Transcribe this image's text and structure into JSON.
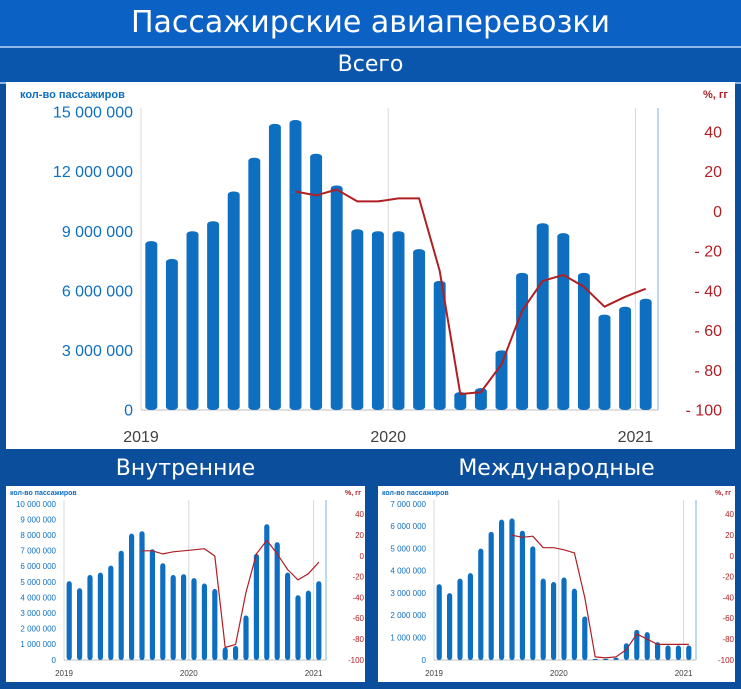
{
  "header": {
    "title": "Пассажирские авиаперевозки",
    "subtitle": "Всего"
  },
  "colors": {
    "bars": "#0e6fc1",
    "line": "#b01f24",
    "left_axis_text": "#0e6fc1",
    "right_axis_text": "#b01f24",
    "header_bg": "#0c61c4"
  },
  "chart_data": [
    {
      "id": "total",
      "type": "bar",
      "title": "Всего",
      "ylabel": "кол-во пассажиров",
      "y2label": "%, гг",
      "ylim": [
        0,
        15000000
      ],
      "y_ticks": [
        0,
        3000000,
        6000000,
        9000000,
        12000000,
        15000000
      ],
      "y_tick_labels": [
        "0",
        "3 000 000",
        "6 000 000",
        "9 000 000",
        "12 000 000",
        "15 000 000"
      ],
      "y2lim": [
        -100,
        50
      ],
      "y2_ticks": [
        -100,
        -80,
        -60,
        -40,
        -20,
        0,
        20,
        40
      ],
      "y2_tick_labels": [
        "- 100",
        "- 80",
        "- 60",
        "- 40",
        "- 20",
        "0",
        "20",
        "40"
      ],
      "x_labels": [
        {
          "index": 0,
          "text": "2019"
        },
        {
          "index": 12,
          "text": "2020"
        },
        {
          "index": 24,
          "text": "2021"
        }
      ],
      "values": [
        8500000,
        7600000,
        9000000,
        9500000,
        11000000,
        12700000,
        14400000,
        14600000,
        12900000,
        11300000,
        9100000,
        9000000,
        9000000,
        8100000,
        6500000,
        900000,
        1100000,
        3000000,
        6900000,
        9400000,
        8900000,
        6900000,
        4800000,
        5200000,
        5600000
      ],
      "series2": {
        "start_index": 7,
        "values": [
          10,
          8,
          11,
          5,
          5,
          6.5,
          6.5,
          -30,
          -92,
          -91,
          -77,
          -50,
          -35,
          -32,
          -38,
          -48,
          -43,
          -39
        ]
      }
    },
    {
      "id": "domestic",
      "type": "bar",
      "title": "Внутренние",
      "ylabel": "кол-во пассажиров",
      "y2label": "%, гг",
      "ylim": [
        0,
        10000000
      ],
      "y_ticks": [
        0,
        1000000,
        2000000,
        3000000,
        4000000,
        5000000,
        6000000,
        7000000,
        8000000,
        9000000,
        10000000
      ],
      "y_tick_labels": [
        "0",
        "1 000 000",
        "2 000 000",
        "3 000 000",
        "4 000 000",
        "5 000 000",
        "6 000 000",
        "7 000 000",
        "8 000 000",
        "9 000 000",
        "10 000 000"
      ],
      "y2lim": [
        -100,
        50
      ],
      "y2_ticks": [
        -100,
        -80,
        -60,
        -40,
        -20,
        0,
        20,
        40
      ],
      "y2_tick_labels": [
        "-100",
        "-80",
        "-60",
        "-40",
        "-20",
        "0",
        "20",
        "40"
      ],
      "x_labels": [
        {
          "index": 0,
          "text": "2019"
        },
        {
          "index": 12,
          "text": "2020"
        },
        {
          "index": 24,
          "text": "2021"
        }
      ],
      "values": [
        5050000,
        4600000,
        5450000,
        5600000,
        6050000,
        7000000,
        8100000,
        8250000,
        7100000,
        6200000,
        5450000,
        5500000,
        5250000,
        4900000,
        4550000,
        800000,
        900000,
        2850000,
        6800000,
        8700000,
        7550000,
        5600000,
        4150000,
        4450000,
        5050000
      ],
      "series2": {
        "start_index": 7,
        "values": [
          5,
          5,
          2,
          4,
          5,
          6,
          7,
          0,
          -88,
          -85,
          -35,
          2,
          15,
          2,
          -13,
          -23,
          -17,
          -6
        ]
      }
    },
    {
      "id": "international",
      "type": "bar",
      "title": "Международные",
      "ylabel": "кол-во пассажиров",
      "y2label": "%, гг",
      "ylim": [
        0,
        7000000
      ],
      "y_ticks": [
        0,
        1000000,
        2000000,
        3000000,
        4000000,
        5000000,
        6000000,
        7000000
      ],
      "y_tick_labels": [
        "0",
        "1 000 000",
        "2 000 000",
        "3 000 000",
        "4 000 000",
        "5 000 000",
        "6 000 000",
        "7 000 000"
      ],
      "y2lim": [
        -100,
        50
      ],
      "y2_ticks": [
        -100,
        -80,
        -60,
        -40,
        -20,
        0,
        20,
        40
      ],
      "y2_tick_labels": [
        "-100",
        "-80",
        "-60",
        "-40",
        "-20",
        "0",
        "20",
        "40"
      ],
      "x_labels": [
        {
          "index": 0,
          "text": "2019"
        },
        {
          "index": 12,
          "text": "2020"
        },
        {
          "index": 24,
          "text": "2021"
        }
      ],
      "values": [
        3400000,
        3000000,
        3650000,
        3900000,
        5000000,
        5750000,
        6300000,
        6350000,
        5800000,
        5100000,
        3650000,
        3500000,
        3700000,
        3200000,
        1950000,
        50000,
        50000,
        100000,
        750000,
        1350000,
        1250000,
        800000,
        650000,
        650000,
        650000
      ],
      "series2": {
        "start_index": 7,
        "values": [
          20,
          18,
          19,
          8,
          8,
          6,
          3,
          -40,
          -97,
          -98,
          -97,
          -90,
          -75,
          -80,
          -85,
          -85,
          -85,
          -85
        ]
      }
    }
  ]
}
